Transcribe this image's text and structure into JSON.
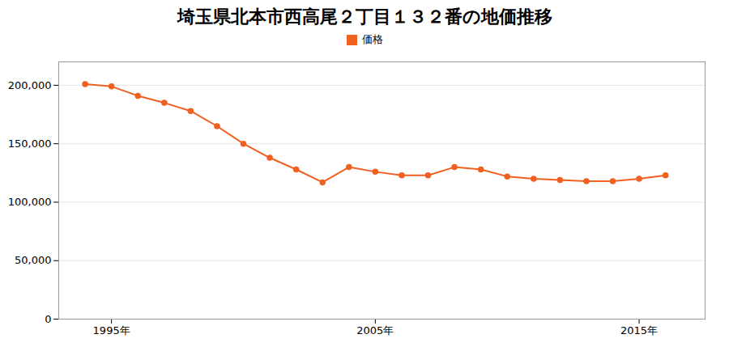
{
  "chart_data": {
    "type": "line",
    "title": "埼玉県北本市西高尾２丁目１３２番の地価推移",
    "x": [
      1994,
      1995,
      1996,
      1997,
      1998,
      1999,
      2000,
      2001,
      2002,
      2003,
      2004,
      2005,
      2006,
      2007,
      2008,
      2009,
      2010,
      2011,
      2012,
      2013,
      2014,
      2015,
      2016
    ],
    "series": [
      {
        "name": "価格",
        "color": "#F06020",
        "marker": "circle",
        "values": [
          201000,
          199000,
          191000,
          185000,
          178000,
          165000,
          150000,
          138000,
          128000,
          117000,
          130000,
          126000,
          123000,
          123000,
          130000,
          128000,
          122000,
          120000,
          119000,
          118000,
          118000,
          120000,
          123000
        ]
      }
    ],
    "xlim": [
      1993.0,
      2017.5
    ],
    "xticks": [
      {
        "value": 1995,
        "label": "1995年"
      },
      {
        "value": 2005,
        "label": "2005年"
      },
      {
        "value": 2015,
        "label": "2015年"
      }
    ],
    "ylim": [
      0,
      220000
    ],
    "yticks": [
      0,
      {
        "value": 50000,
        "label": "50,000"
      },
      {
        "value": 100000,
        "label": "100,000"
      },
      {
        "value": 150000,
        "label": "150,000"
      },
      {
        "value": 200000,
        "label": "200,000"
      }
    ],
    "grid": "y",
    "legend": "top"
  }
}
